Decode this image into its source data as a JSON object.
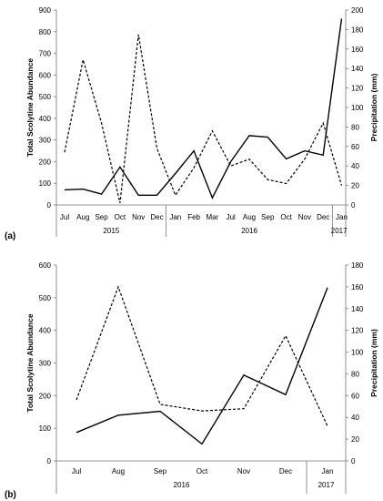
{
  "figure": {
    "ylabel_left": "Total Scolytine Abundance",
    "ylabel_right": "Precipitation (mm)"
  },
  "chart_data": [
    {
      "type": "line",
      "panel_label": "(a)",
      "categories": [
        "Jul",
        "Aug",
        "Sep",
        "Oct",
        "Nov",
        "Dec",
        "Jan",
        "Feb",
        "Mar",
        "Jul",
        "Aug",
        "Sep",
        "Oct",
        "Nov",
        "Dec",
        "Jan"
      ],
      "year_groups": [
        {
          "label": "2015",
          "start": 0,
          "end": 5
        },
        {
          "label": "2016",
          "start": 6,
          "end": 14
        },
        {
          "label": "2017",
          "start": 15,
          "end": 15
        }
      ],
      "left_axis": {
        "title": "Total Scolytine Abundance",
        "ylim": [
          0,
          900
        ],
        "ticks": [
          0,
          100,
          200,
          300,
          400,
          500,
          600,
          700,
          800,
          900
        ]
      },
      "right_axis": {
        "title": "Precipitation (mm)",
        "ylim": [
          0,
          200
        ],
        "ticks": [
          0,
          20,
          40,
          60,
          80,
          100,
          120,
          140,
          160,
          180,
          200
        ]
      },
      "series": [
        {
          "axis": "left",
          "style": "solid",
          "values": [
            70,
            73,
            50,
            175,
            45,
            45,
            145,
            250,
            33,
            200,
            320,
            313,
            213,
            250,
            230,
            860
          ]
        },
        {
          "axis": "right",
          "style": "dashed",
          "values": [
            54,
            149,
            84,
            2,
            175,
            58,
            10,
            38,
            76,
            40,
            47,
            26,
            22,
            47,
            84,
            20
          ]
        }
      ]
    },
    {
      "type": "line",
      "panel_label": "(b)",
      "categories": [
        "Jul",
        "Aug",
        "Sep",
        "Oct",
        "Nov",
        "Dec",
        "Jan"
      ],
      "year_groups": [
        {
          "label": "2016",
          "start": 0,
          "end": 5
        },
        {
          "label": "2017",
          "start": 6,
          "end": 6
        }
      ],
      "left_axis": {
        "title": "Total Scolytine Abundance",
        "ylim": [
          0,
          600
        ],
        "ticks": [
          0,
          100,
          200,
          300,
          400,
          500,
          600
        ]
      },
      "right_axis": {
        "title": "Precipitation (mm)",
        "ylim": [
          0,
          180
        ],
        "ticks": [
          0,
          20,
          40,
          60,
          80,
          100,
          120,
          140,
          160,
          180
        ]
      },
      "series": [
        {
          "axis": "left",
          "style": "solid",
          "values": [
            87,
            140,
            152,
            52,
            263,
            203,
            531
          ]
        },
        {
          "axis": "right",
          "style": "dashed",
          "values": [
            56,
            160,
            52,
            46,
            48,
            115,
            32
          ]
        }
      ]
    }
  ]
}
